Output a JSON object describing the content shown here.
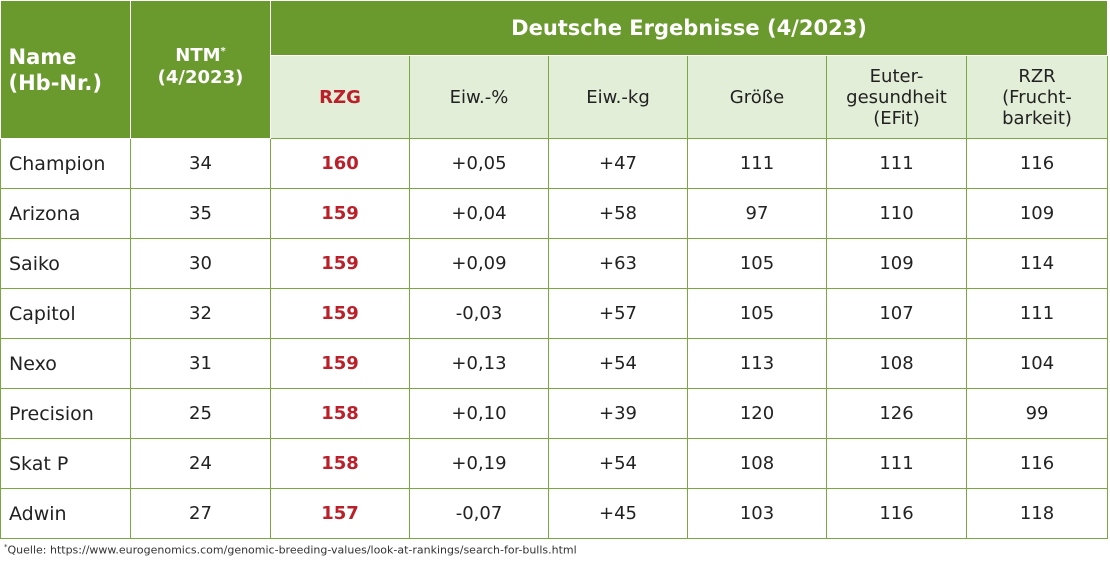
{
  "header": {
    "name_line1": "Name",
    "name_line2": "(Hb-Nr.)",
    "ntm_line1": "NTM",
    "ntm_star": "*",
    "ntm_line2": "(4/2023)",
    "group_title": "Deutsche Ergebnisse (4/2023)",
    "columns": [
      {
        "lines": [
          "RZG"
        ]
      },
      {
        "lines": [
          "Eiw.-%"
        ]
      },
      {
        "lines": [
          "Eiw.-kg"
        ]
      },
      {
        "lines": [
          "Größe"
        ]
      },
      {
        "lines": [
          "Euter-",
          "gesundheit",
          "(EFit)"
        ]
      },
      {
        "lines": [
          "RZR",
          "(Frucht-",
          "barkeit)"
        ]
      }
    ]
  },
  "rows": [
    {
      "name": "Champion",
      "ntm": "34",
      "rzg": "160",
      "eiw_pct": "+0,05",
      "eiw_kg": "+47",
      "groesse": "111",
      "euter": "111",
      "rzr": "116"
    },
    {
      "name": "Arizona",
      "ntm": "35",
      "rzg": "159",
      "eiw_pct": "+0,04",
      "eiw_kg": "+58",
      "groesse": "97",
      "euter": "110",
      "rzr": "109"
    },
    {
      "name": "Saiko",
      "ntm": "30",
      "rzg": "159",
      "eiw_pct": "+0,09",
      "eiw_kg": "+63",
      "groesse": "105",
      "euter": "109",
      "rzr": "114"
    },
    {
      "name": "Capitol",
      "ntm": "32",
      "rzg": "159",
      "eiw_pct": "-0,03",
      "eiw_kg": "+57",
      "groesse": "105",
      "euter": "107",
      "rzr": "111"
    },
    {
      "name": "Nexo",
      "ntm": "31",
      "rzg": "159",
      "eiw_pct": "+0,13",
      "eiw_kg": "+54",
      "groesse": "113",
      "euter": "108",
      "rzr": "104"
    },
    {
      "name": "Precision",
      "ntm": "25",
      "rzg": "158",
      "eiw_pct": "+0,10",
      "eiw_kg": "+39",
      "groesse": "120",
      "euter": "126",
      "rzr": "99"
    },
    {
      "name": "Skat P",
      "ntm": "24",
      "rzg": "158",
      "eiw_pct": "+0,19",
      "eiw_kg": "+54",
      "groesse": "108",
      "euter": "111",
      "rzr": "116"
    },
    {
      "name": "Adwin",
      "ntm": "27",
      "rzg": "157",
      "eiw_pct": "-0,07",
      "eiw_kg": "+45",
      "groesse": "103",
      "euter": "116",
      "rzr": "118"
    }
  ],
  "footnote": {
    "star": "*",
    "text": "Quelle: https://www.eurogenomics.com/genomic-breeding-values/look-at-rankings/search-for-bulls.html"
  },
  "colors": {
    "header_green": "#6a9a2d",
    "subheader_bg": "#e2eed7",
    "rzg_red": "#bb1f29",
    "grid_green": "#79a843"
  }
}
